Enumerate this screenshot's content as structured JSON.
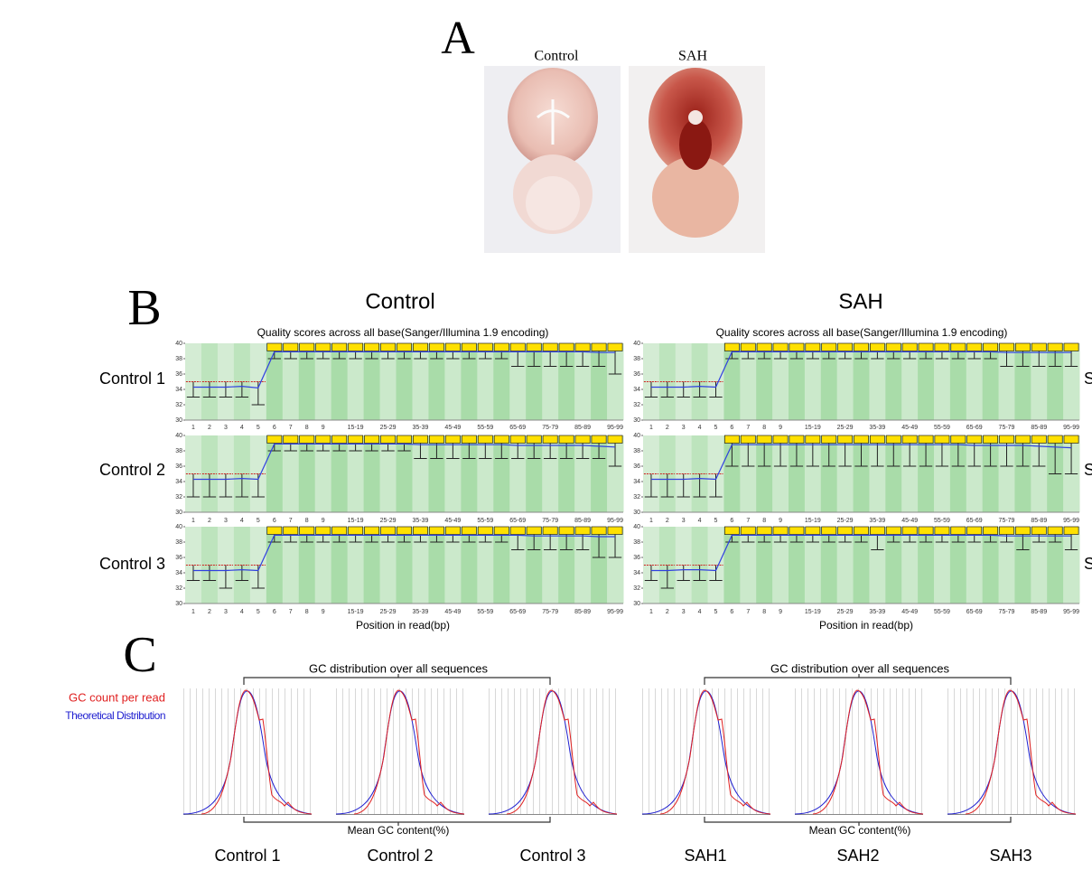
{
  "figure": {
    "panel_labels": [
      "A",
      "B",
      "C"
    ],
    "photo_labels": [
      "Control",
      "SAH"
    ],
    "quality": {
      "column_titles": [
        "Control",
        "SAH"
      ],
      "plot_title": "Quality scores across all base(Sanger/Illumina 1.9 encoding)",
      "x_label": "Position in read(bp)",
      "ylim": [
        30,
        40
      ],
      "yticks": [
        30,
        32,
        34,
        36,
        38,
        40
      ],
      "positions": [
        "1",
        "2",
        "3",
        "4",
        "5",
        "6",
        "7",
        "8",
        "9",
        null,
        "15-19",
        null,
        "25-29",
        null,
        "35-39",
        null,
        "45-49",
        null,
        "55-59",
        null,
        "65-69",
        null,
        "75-79",
        null,
        "85-89",
        null,
        "95-99"
      ],
      "row_labels": [
        "Control 1",
        "Control 2",
        "Control 3"
      ],
      "row_labels_right": [
        "S",
        "S",
        "S"
      ],
      "plots": [
        [
          {
            "means": [
              34.3,
              34.3,
              34.3,
              34.4,
              34.2,
              38.9,
              38.9,
              38.9,
              38.9,
              38.9,
              38.9,
              38.9,
              38.9,
              38.9,
              38.9,
              38.9,
              38.9,
              38.9,
              38.9,
              38.9,
              38.9,
              38.9,
              38.9,
              38.9,
              38.9,
              38.8,
              38.8
            ],
            "lower": [
              33,
              33,
              33,
              33,
              32,
              38,
              38,
              38,
              38,
              38,
              38,
              38,
              38,
              38,
              38,
              38,
              38,
              38,
              38,
              38,
              37,
              37,
              37,
              37,
              37,
              37,
              36
            ]
          },
          {
            "means": [
              34.3,
              34.3,
              34.3,
              34.4,
              34.3,
              38.9,
              38.9,
              38.9,
              38.9,
              38.9,
              38.9,
              38.9,
              38.9,
              38.9,
              38.8,
              38.8,
              38.8,
              38.8,
              38.8,
              38.8,
              38.7,
              38.7,
              38.7,
              38.7,
              38.7,
              38.6,
              38.5
            ],
            "lower": [
              32,
              32,
              32,
              32,
              32,
              38,
              38,
              38,
              38,
              38,
              38,
              38,
              38,
              38,
              37,
              37,
              37,
              37,
              37,
              37,
              37,
              37,
              37,
              37,
              37,
              37,
              36
            ]
          },
          {
            "means": [
              34.3,
              34.3,
              34.3,
              34.4,
              34.3,
              38.9,
              38.9,
              38.9,
              38.9,
              38.9,
              38.9,
              38.9,
              38.9,
              38.9,
              38.9,
              38.9,
              38.9,
              38.9,
              38.9,
              38.9,
              38.9,
              38.8,
              38.8,
              38.8,
              38.8,
              38.7,
              38.7
            ],
            "lower": [
              33,
              33,
              32,
              33,
              32,
              38,
              38,
              38,
              38,
              38,
              38,
              38,
              38,
              38,
              38,
              38,
              38,
              38,
              38,
              38,
              37,
              37,
              37,
              37,
              37,
              36,
              36
            ]
          }
        ],
        [
          {
            "means": [
              34.3,
              34.3,
              34.3,
              34.4,
              34.3,
              38.9,
              38.9,
              38.9,
              38.9,
              38.9,
              38.9,
              38.9,
              38.9,
              38.9,
              38.9,
              38.9,
              38.9,
              38.9,
              38.9,
              38.9,
              38.9,
              38.9,
              38.8,
              38.8,
              38.8,
              38.8,
              38.8
            ],
            "lower": [
              33,
              33,
              33,
              33,
              33,
              38,
              38,
              38,
              38,
              38,
              38,
              38,
              38,
              38,
              38,
              38,
              38,
              38,
              38,
              38,
              38,
              38,
              37,
              37,
              37,
              37,
              37
            ]
          },
          {
            "means": [
              34.3,
              34.3,
              34.3,
              34.4,
              34.3,
              38.8,
              38.8,
              38.8,
              38.8,
              38.8,
              38.8,
              38.8,
              38.8,
              38.8,
              38.8,
              38.8,
              38.8,
              38.8,
              38.8,
              38.8,
              38.7,
              38.7,
              38.7,
              38.7,
              38.6,
              38.5,
              38.4
            ],
            "lower": [
              32,
              32,
              32,
              32,
              32,
              36,
              36,
              36,
              36,
              36,
              36,
              36,
              36,
              36,
              36,
              36,
              36,
              36,
              36,
              36,
              36,
              36,
              36,
              36,
              36,
              35,
              35
            ]
          },
          {
            "means": [
              34.3,
              34.3,
              34.4,
              34.4,
              34.3,
              38.9,
              38.9,
              38.9,
              38.9,
              38.9,
              38.9,
              38.9,
              38.9,
              38.9,
              38.9,
              38.9,
              38.9,
              38.9,
              38.9,
              38.9,
              38.9,
              38.9,
              38.8,
              38.8,
              38.8,
              38.8,
              38.8
            ],
            "lower": [
              33,
              32,
              33,
              33,
              33,
              38,
              38,
              38,
              38,
              38,
              38,
              38,
              38,
              38,
              37,
              38,
              38,
              38,
              38,
              38,
              38,
              38,
              38,
              37,
              38,
              38,
              37
            ]
          }
        ]
      ]
    },
    "gc": {
      "legend": [
        {
          "name": "GC count per read",
          "color": "#e02020"
        },
        {
          "name": "Theoretical Distribution",
          "color": "#2020d0"
        }
      ],
      "title": "GC distribution over all sequences",
      "x_label": "Mean GC content(%)",
      "sample_labels": [
        "Control 1",
        "Control 2",
        "Control 3",
        "SAH1",
        "SAH2",
        "SAH3"
      ]
    }
  }
}
